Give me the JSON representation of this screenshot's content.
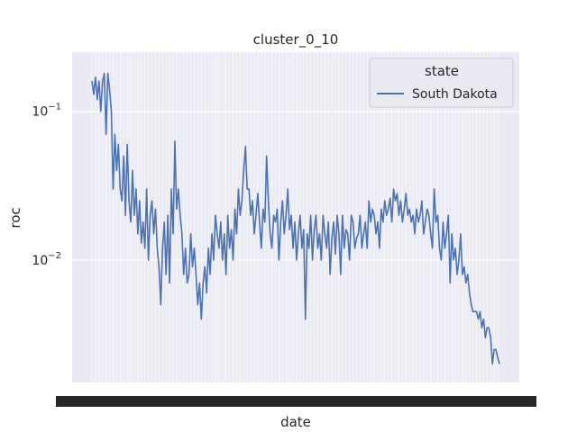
{
  "chart_data": {
    "type": "line",
    "title": "cluster_0_10",
    "xlabel": "date",
    "ylabel": "roc",
    "yscale": "log",
    "ylim": [
      0.0015,
      0.25
    ],
    "grid": true,
    "y_ticks": [
      {
        "value": 0.1,
        "base": "10",
        "exp": "−1"
      },
      {
        "value": 0.01,
        "base": "10",
        "exp": "−2"
      }
    ],
    "legend": {
      "title": "state",
      "placement": "top-right"
    },
    "colors": {
      "background": "#eaeaf2",
      "grid": "#ffffff",
      "line": "#4c72b0"
    },
    "series": [
      {
        "name": "South Dakota",
        "values": [
          0.16,
          0.13,
          0.17,
          0.12,
          0.16,
          0.1,
          0.16,
          0.18,
          0.07,
          0.18,
          0.14,
          0.1,
          0.03,
          0.07,
          0.04,
          0.06,
          0.03,
          0.025,
          0.05,
          0.02,
          0.06,
          0.025,
          0.018,
          0.04,
          0.02,
          0.03,
          0.015,
          0.025,
          0.013,
          0.018,
          0.012,
          0.03,
          0.01,
          0.02,
          0.025,
          0.015,
          0.022,
          0.012,
          0.009,
          0.005,
          0.012,
          0.018,
          0.008,
          0.02,
          0.007,
          0.03,
          0.015,
          0.063,
          0.022,
          0.03,
          0.02,
          0.015,
          0.008,
          0.012,
          0.007,
          0.008,
          0.015,
          0.009,
          0.012,
          0.008,
          0.005,
          0.007,
          0.004,
          0.007,
          0.009,
          0.006,
          0.012,
          0.008,
          0.015,
          0.01,
          0.02,
          0.015,
          0.012,
          0.018,
          0.01,
          0.015,
          0.008,
          0.02,
          0.012,
          0.016,
          0.01,
          0.022,
          0.015,
          0.03,
          0.02,
          0.025,
          0.04,
          0.058,
          0.03,
          0.03,
          0.02,
          0.025,
          0.015,
          0.02,
          0.028,
          0.018,
          0.012,
          0.022,
          0.018,
          0.05,
          0.025,
          0.015,
          0.012,
          0.02,
          0.018,
          0.022,
          0.01,
          0.018,
          0.025,
          0.015,
          0.02,
          0.03,
          0.016,
          0.02,
          0.012,
          0.018,
          0.01,
          0.015,
          0.02,
          0.012,
          0.016,
          0.004,
          0.015,
          0.012,
          0.02,
          0.01,
          0.016,
          0.02,
          0.012,
          0.015,
          0.01,
          0.02,
          0.015,
          0.012,
          0.018,
          0.008,
          0.014,
          0.018,
          0.011,
          0.02,
          0.015,
          0.008,
          0.02,
          0.012,
          0.016,
          0.015,
          0.01,
          0.02,
          0.018,
          0.012,
          0.014,
          0.015,
          0.02,
          0.012,
          0.015,
          0.018,
          0.012,
          0.025,
          0.018,
          0.022,
          0.02,
          0.015,
          0.018,
          0.012,
          0.022,
          0.018,
          0.025,
          0.02,
          0.022,
          0.026,
          0.018,
          0.03,
          0.025,
          0.028,
          0.02,
          0.025,
          0.018,
          0.022,
          0.028,
          0.02,
          0.022,
          0.018,
          0.02,
          0.015,
          0.022,
          0.018,
          0.02,
          0.025,
          0.015,
          0.018,
          0.022,
          0.02,
          0.015,
          0.012,
          0.03,
          0.018,
          0.02,
          0.012,
          0.01,
          0.018,
          0.012,
          0.015,
          0.02,
          0.007,
          0.015,
          0.01,
          0.012,
          0.008,
          0.01,
          0.015,
          0.008,
          0.009,
          0.007,
          0.008,
          0.006,
          0.005,
          0.0045,
          0.0045,
          0.0045,
          0.004,
          0.0045,
          0.0035,
          0.004,
          0.003,
          0.0035,
          0.0035,
          0.003,
          0.002,
          0.0025,
          0.0025,
          0.0022,
          0.002
        ]
      }
    ]
  }
}
